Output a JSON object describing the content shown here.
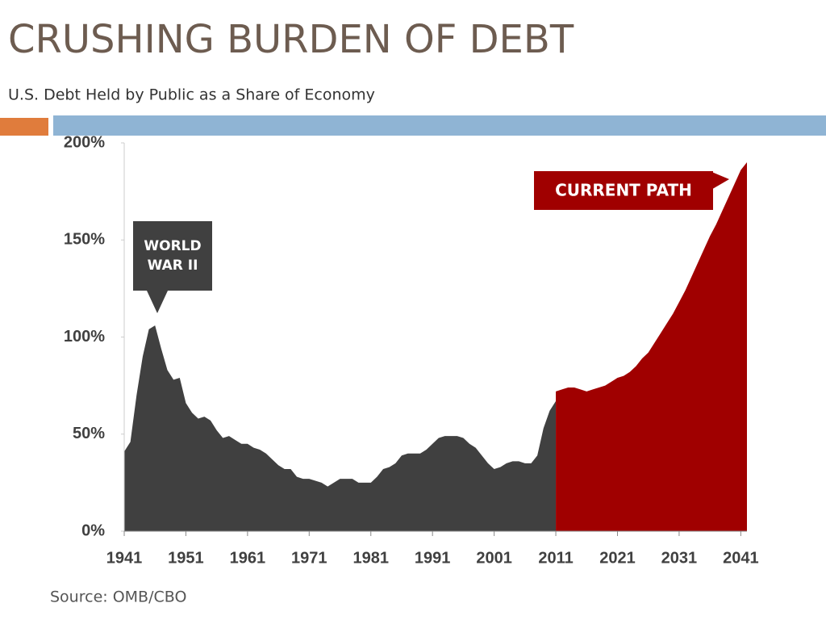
{
  "chart_data": {
    "type": "area",
    "title": "CRUSHING BURDEN OF DEBT",
    "subtitle": "U.S. Debt Held by Public as a Share of Economy",
    "source": "Source: OMB/CBO",
    "annotations": [
      "WORLD WAR II",
      "CURRENT PATH"
    ],
    "xlim": [
      1941,
      2042
    ],
    "xticks": [
      1941,
      1951,
      1961,
      1971,
      1981,
      1991,
      2001,
      2011,
      2021,
      2031,
      2041
    ],
    "ylim": [
      0,
      200
    ],
    "yticks": [
      {
        "value": 0,
        "label": "0%"
      },
      {
        "value": 50,
        "label": "50%"
      },
      {
        "value": 100,
        "label": "100%"
      },
      {
        "value": 150,
        "label": "150%"
      },
      {
        "value": 200,
        "label": "200%"
      }
    ],
    "grid": false,
    "series": [
      {
        "color": "#404040",
        "x": [
          1941,
          1942,
          1943,
          1944,
          1945,
          1946,
          1947,
          1948,
          1949,
          1950,
          1951,
          1952,
          1953,
          1954,
          1955,
          1956,
          1957,
          1958,
          1959,
          1960,
          1961,
          1962,
          1963,
          1964,
          1965,
          1966,
          1967,
          1968,
          1969,
          1970,
          1971,
          1972,
          1973,
          1974,
          1975,
          1976,
          1977,
          1978,
          1979,
          1980,
          1981,
          1982,
          1983,
          1984,
          1985,
          1986,
          1987,
          1988,
          1989,
          1990,
          1991,
          1992,
          1993,
          1994,
          1995,
          1996,
          1997,
          1998,
          1999,
          2000,
          2001,
          2002,
          2003,
          2004,
          2005,
          2006,
          2007,
          2008,
          2009,
          2010,
          2011
        ],
        "values": [
          41,
          46,
          70,
          90,
          104,
          106,
          94,
          83,
          78,
          79,
          66,
          61,
          58,
          59,
          57,
          52,
          48,
          49,
          47,
          45,
          45,
          43,
          42,
          40,
          37,
          34,
          32,
          32,
          28,
          27,
          27,
          26,
          25,
          23,
          25,
          27,
          27,
          27,
          25,
          25,
          25,
          28,
          32,
          33,
          35,
          39,
          40,
          40,
          40,
          42,
          45,
          48,
          49,
          49,
          49,
          48,
          45,
          43,
          39,
          35,
          32,
          33,
          35,
          36,
          36,
          35,
          35,
          39,
          53,
          62,
          67
        ]
      },
      {
        "color": "#a00000",
        "x": [
          2011,
          2012,
          2013,
          2014,
          2015,
          2016,
          2017,
          2018,
          2019,
          2020,
          2021,
          2022,
          2023,
          2024,
          2025,
          2026,
          2027,
          2028,
          2029,
          2030,
          2031,
          2032,
          2033,
          2034,
          2035,
          2036,
          2037,
          2038,
          2039,
          2040,
          2041,
          2042
        ],
        "values": [
          72,
          73,
          74,
          74,
          73,
          72,
          73,
          74,
          75,
          77,
          79,
          80,
          82,
          85,
          89,
          92,
          97,
          102,
          107,
          112,
          118,
          124,
          131,
          138,
          145,
          152,
          158,
          165,
          172,
          179,
          186,
          190
        ]
      }
    ]
  }
}
